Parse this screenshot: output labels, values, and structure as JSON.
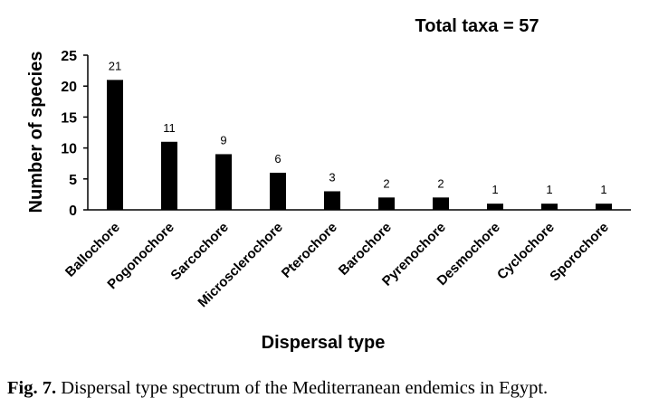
{
  "chart_data": {
    "type": "bar",
    "annotation": "Total taxa = 57",
    "xlabel": "Dispersal type",
    "ylabel": "Number of species",
    "categories": [
      "Ballochore",
      "Pogonochore",
      "Sarcochore",
      "Microsclerochore",
      "Pterochore",
      "Barochore",
      "Pyrenochore",
      "Desmochore",
      "Cyclochore",
      "Sporochore"
    ],
    "values": [
      21,
      11,
      9,
      6,
      3,
      2,
      2,
      1,
      1,
      1
    ],
    "data_labels": [
      "21",
      "11",
      "9",
      "6",
      "3",
      "2",
      "2",
      "1",
      "1",
      "1"
    ],
    "ylim": [
      0,
      25
    ],
    "yticks": [
      0,
      5,
      10,
      15,
      20,
      25
    ],
    "grid": false,
    "legend": "none",
    "bar_color": "#000000"
  },
  "caption": {
    "label": "Fig. 7.",
    "text": " Dispersal type spectrum of the Mediterranean endemics in Egypt."
  }
}
